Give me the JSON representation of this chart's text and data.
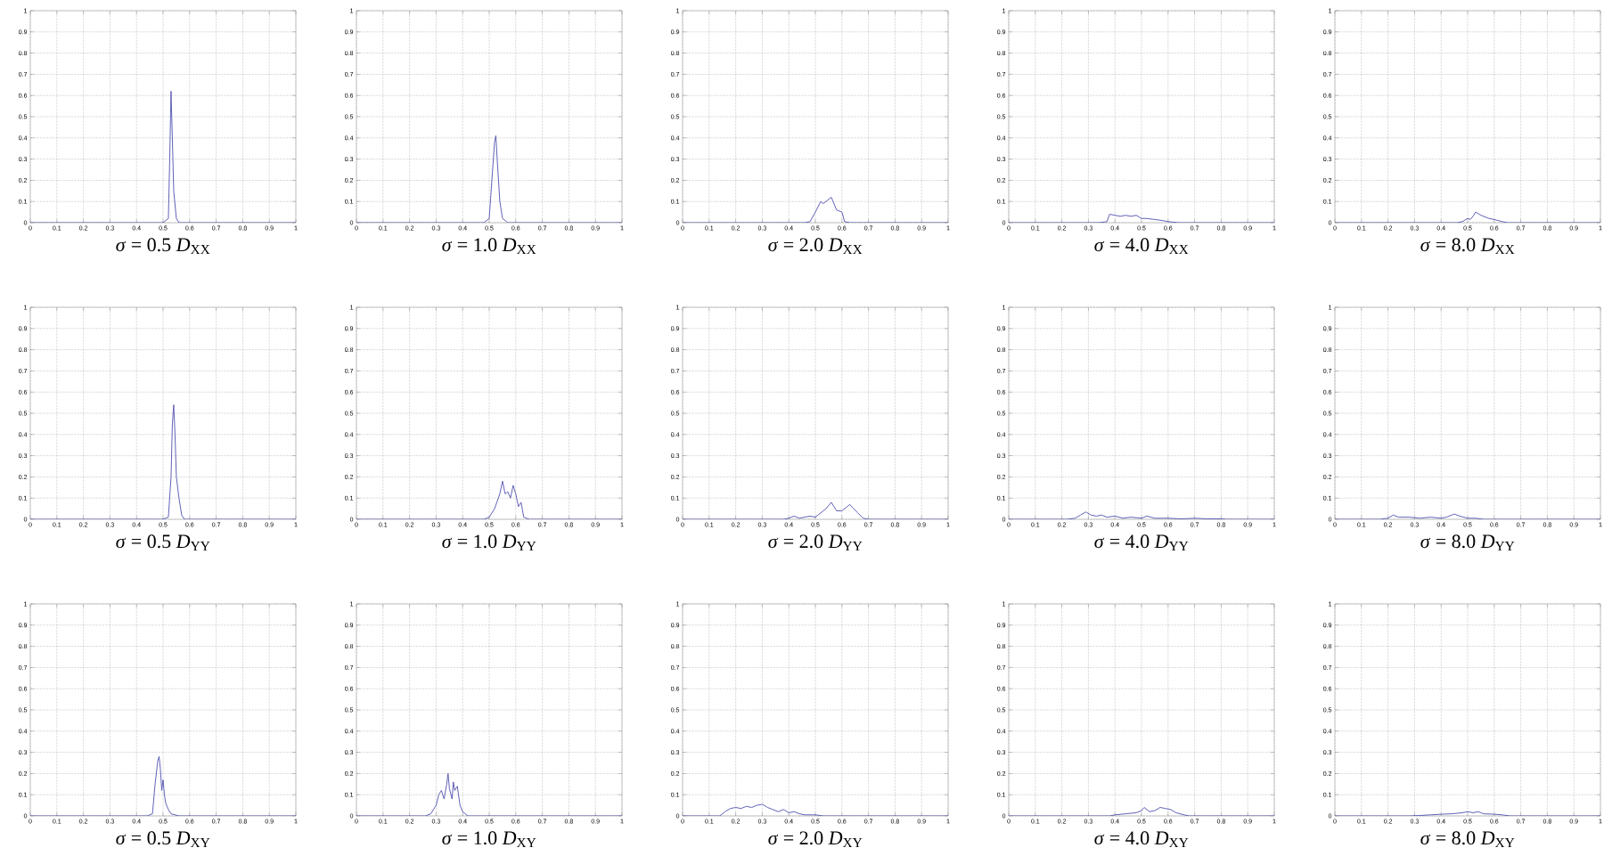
{
  "chart_data": [
    {
      "type": "line",
      "xlabel": "*σ* = 0.5   *D*$_{XX}$",
      "x": [
        0,
        0.5,
        0.52,
        0.525,
        0.53,
        0.535,
        0.54,
        0.55,
        0.56,
        0.6,
        1
      ],
      "values": [
        0,
        0,
        0.02,
        0.3,
        0.62,
        0.4,
        0.15,
        0.02,
        0,
        0,
        0
      ],
      "color": "#5050b0",
      "xlim": [
        0,
        1
      ],
      "ylim": [
        0,
        1
      ],
      "xticks": [
        0,
        0.1,
        0.2,
        0.3,
        0.4,
        0.5,
        0.6,
        0.7,
        0.8,
        0.9,
        1
      ],
      "yticks": [
        0,
        0.1,
        0.2,
        0.3,
        0.4,
        0.5,
        0.6,
        0.7,
        0.8,
        0.9,
        1
      ],
      "grid": true
    },
    {
      "type": "line",
      "xlabel": "*σ* = 1.0   *D*$_{XX}$",
      "x": [
        0,
        0.48,
        0.5,
        0.51,
        0.52,
        0.525,
        0.53,
        0.54,
        0.55,
        0.57,
        1
      ],
      "values": [
        0,
        0,
        0.02,
        0.2,
        0.38,
        0.41,
        0.3,
        0.1,
        0.02,
        0,
        0
      ],
      "color": "#5050b0",
      "xlim": [
        0,
        1
      ],
      "ylim": [
        0,
        1
      ],
      "xticks": [
        0,
        0.1,
        0.2,
        0.3,
        0.4,
        0.5,
        0.6,
        0.7,
        0.8,
        0.9,
        1
      ],
      "yticks": [
        0,
        0.1,
        0.2,
        0.3,
        0.4,
        0.5,
        0.6,
        0.7,
        0.8,
        0.9,
        1
      ],
      "grid": true
    },
    {
      "type": "line",
      "xlabel": "*σ* = 2.0   *D*$_{XX}$",
      "x": [
        0,
        0.46,
        0.48,
        0.5,
        0.52,
        0.53,
        0.55,
        0.56,
        0.57,
        0.58,
        0.6,
        0.61,
        0.63,
        1
      ],
      "values": [
        0,
        0,
        0.005,
        0.05,
        0.1,
        0.09,
        0.11,
        0.12,
        0.09,
        0.06,
        0.05,
        0.005,
        0,
        0
      ],
      "color": "#5050b0",
      "xlim": [
        0,
        1
      ],
      "ylim": [
        0,
        1
      ],
      "xticks": [
        0,
        0.1,
        0.2,
        0.3,
        0.4,
        0.5,
        0.6,
        0.7,
        0.8,
        0.9,
        1
      ],
      "yticks": [
        0,
        0.1,
        0.2,
        0.3,
        0.4,
        0.5,
        0.6,
        0.7,
        0.8,
        0.9,
        1
      ],
      "grid": true
    },
    {
      "type": "line",
      "xlabel": "*σ* = 4.0   *D*$_{XX}$",
      "x": [
        0,
        0.34,
        0.37,
        0.38,
        0.4,
        0.42,
        0.44,
        0.46,
        0.48,
        0.5,
        0.52,
        0.55,
        0.58,
        0.6,
        0.64,
        1
      ],
      "values": [
        0,
        0,
        0.005,
        0.04,
        0.035,
        0.03,
        0.035,
        0.03,
        0.035,
        0.02,
        0.02,
        0.015,
        0.01,
        0.005,
        0,
        0
      ],
      "color": "#5050b0",
      "xlim": [
        0,
        1
      ],
      "ylim": [
        0,
        1
      ],
      "xticks": [
        0,
        0.1,
        0.2,
        0.3,
        0.4,
        0.5,
        0.6,
        0.7,
        0.8,
        0.9,
        1
      ],
      "yticks": [
        0,
        0.1,
        0.2,
        0.3,
        0.4,
        0.5,
        0.6,
        0.7,
        0.8,
        0.9,
        1
      ],
      "grid": true
    },
    {
      "type": "line",
      "xlabel": "*σ* = 8.0   *D*$_{XX}$",
      "x": [
        0,
        0.46,
        0.48,
        0.5,
        0.51,
        0.52,
        0.53,
        0.55,
        0.58,
        0.6,
        0.63,
        0.65,
        1
      ],
      "values": [
        0,
        0,
        0.005,
        0.02,
        0.015,
        0.03,
        0.05,
        0.035,
        0.02,
        0.015,
        0.005,
        0,
        0
      ],
      "color": "#5050b0",
      "xlim": [
        0,
        1
      ],
      "ylim": [
        0,
        1
      ],
      "xticks": [
        0,
        0.1,
        0.2,
        0.3,
        0.4,
        0.5,
        0.6,
        0.7,
        0.8,
        0.9,
        1
      ],
      "yticks": [
        0,
        0.1,
        0.2,
        0.3,
        0.4,
        0.5,
        0.6,
        0.7,
        0.8,
        0.9,
        1
      ],
      "grid": true
    },
    {
      "type": "line",
      "xlabel": "*σ* = 0.5   *D*$_{YY}$",
      "x": [
        0,
        0.5,
        0.52,
        0.53,
        0.535,
        0.54,
        0.545,
        0.55,
        0.56,
        0.57,
        0.58,
        1
      ],
      "values": [
        0,
        0,
        0.01,
        0.2,
        0.45,
        0.54,
        0.4,
        0.2,
        0.1,
        0.02,
        0,
        0
      ],
      "color": "#5050b0",
      "xlim": [
        0,
        1
      ],
      "ylim": [
        0,
        1
      ],
      "xticks": [
        0,
        0.1,
        0.2,
        0.3,
        0.4,
        0.5,
        0.6,
        0.7,
        0.8,
        0.9,
        1
      ],
      "yticks": [
        0,
        0.1,
        0.2,
        0.3,
        0.4,
        0.5,
        0.6,
        0.7,
        0.8,
        0.9,
        1
      ],
      "grid": true
    },
    {
      "type": "line",
      "xlabel": "*σ* = 1.0   *D*$_{YY}$",
      "x": [
        0,
        0.48,
        0.5,
        0.52,
        0.54,
        0.55,
        0.56,
        0.57,
        0.58,
        0.59,
        0.6,
        0.61,
        0.62,
        0.63,
        0.65,
        1
      ],
      "values": [
        0,
        0,
        0.01,
        0.05,
        0.12,
        0.18,
        0.12,
        0.13,
        0.1,
        0.16,
        0.12,
        0.06,
        0.08,
        0.01,
        0,
        0
      ],
      "color": "#5050b0",
      "xlim": [
        0,
        1
      ],
      "ylim": [
        0,
        1
      ],
      "xticks": [
        0,
        0.1,
        0.2,
        0.3,
        0.4,
        0.5,
        0.6,
        0.7,
        0.8,
        0.9,
        1
      ],
      "yticks": [
        0,
        0.1,
        0.2,
        0.3,
        0.4,
        0.5,
        0.6,
        0.7,
        0.8,
        0.9,
        1
      ],
      "grid": true
    },
    {
      "type": "line",
      "xlabel": "*σ* = 2.0   *D*$_{YY}$",
      "x": [
        0,
        0.38,
        0.4,
        0.42,
        0.44,
        0.46,
        0.48,
        0.5,
        0.52,
        0.54,
        0.56,
        0.58,
        0.6,
        0.62,
        0.63,
        0.64,
        0.66,
        0.68,
        0.7,
        1
      ],
      "values": [
        0,
        0,
        0.005,
        0.015,
        0.005,
        0.01,
        0.015,
        0.01,
        0.03,
        0.05,
        0.08,
        0.04,
        0.04,
        0.06,
        0.07,
        0.055,
        0.03,
        0.005,
        0,
        0
      ],
      "color": "#5050b0",
      "xlim": [
        0,
        1
      ],
      "ylim": [
        0,
        1
      ],
      "xticks": [
        0,
        0.1,
        0.2,
        0.3,
        0.4,
        0.5,
        0.6,
        0.7,
        0.8,
        0.9,
        1
      ],
      "yticks": [
        0,
        0.1,
        0.2,
        0.3,
        0.4,
        0.5,
        0.6,
        0.7,
        0.8,
        0.9,
        1
      ],
      "grid": true
    },
    {
      "type": "line",
      "xlabel": "*σ* = 4.0   *D*$_{YY}$",
      "x": [
        0,
        0.22,
        0.25,
        0.27,
        0.29,
        0.31,
        0.33,
        0.35,
        0.37,
        0.4,
        0.43,
        0.46,
        0.5,
        0.52,
        0.55,
        0.6,
        0.65,
        0.7,
        0.75,
        0.8,
        0.82,
        1
      ],
      "values": [
        0,
        0,
        0.005,
        0.02,
        0.035,
        0.02,
        0.015,
        0.02,
        0.01,
        0.015,
        0.005,
        0.01,
        0.005,
        0.015,
        0.005,
        0.005,
        0.002,
        0.005,
        0.002,
        0.002,
        0,
        0
      ],
      "color": "#5050b0",
      "xlim": [
        0,
        1
      ],
      "ylim": [
        0,
        1
      ],
      "xticks": [
        0,
        0.1,
        0.2,
        0.3,
        0.4,
        0.5,
        0.6,
        0.7,
        0.8,
        0.9,
        1
      ],
      "yticks": [
        0,
        0.1,
        0.2,
        0.3,
        0.4,
        0.5,
        0.6,
        0.7,
        0.8,
        0.9,
        1
      ],
      "grid": true
    },
    {
      "type": "line",
      "xlabel": "*σ* = 8.0   *D*$_{YY}$",
      "x": [
        0,
        0.17,
        0.2,
        0.22,
        0.24,
        0.28,
        0.32,
        0.36,
        0.4,
        0.42,
        0.44,
        0.45,
        0.47,
        0.5,
        0.53,
        0.56,
        1
      ],
      "values": [
        0,
        0,
        0.005,
        0.02,
        0.01,
        0.01,
        0.005,
        0.01,
        0.005,
        0.01,
        0.02,
        0.025,
        0.015,
        0.005,
        0.005,
        0,
        0
      ],
      "color": "#5050b0",
      "xlim": [
        0,
        1
      ],
      "ylim": [
        0,
        1
      ],
      "xticks": [
        0,
        0.1,
        0.2,
        0.3,
        0.4,
        0.5,
        0.6,
        0.7,
        0.8,
        0.9,
        1
      ],
      "yticks": [
        0,
        0.1,
        0.2,
        0.3,
        0.4,
        0.5,
        0.6,
        0.7,
        0.8,
        0.9,
        1
      ],
      "grid": true
    },
    {
      "type": "line",
      "xlabel": "*σ* = 0.5   *D*$_{XY}$",
      "x": [
        0,
        0.44,
        0.46,
        0.47,
        0.48,
        0.485,
        0.49,
        0.495,
        0.5,
        0.505,
        0.51,
        0.52,
        0.53,
        0.56,
        0.58,
        1
      ],
      "values": [
        0,
        0,
        0.01,
        0.15,
        0.26,
        0.28,
        0.22,
        0.12,
        0.17,
        0.1,
        0.06,
        0.03,
        0.01,
        0,
        0,
        0
      ],
      "color": "#5050b0",
      "xlim": [
        0,
        1
      ],
      "ylim": [
        0,
        1
      ],
      "xticks": [
        0,
        0.1,
        0.2,
        0.3,
        0.4,
        0.5,
        0.6,
        0.7,
        0.8,
        0.9,
        1
      ],
      "yticks": [
        0,
        0.1,
        0.2,
        0.3,
        0.4,
        0.5,
        0.6,
        0.7,
        0.8,
        0.9,
        1
      ],
      "grid": true
    },
    {
      "type": "line",
      "xlabel": "*σ* = 1.0   *D*$_{XY}$",
      "x": [
        0,
        0.26,
        0.28,
        0.3,
        0.31,
        0.32,
        0.33,
        0.34,
        0.345,
        0.35,
        0.36,
        0.365,
        0.37,
        0.38,
        0.39,
        0.4,
        0.42,
        1
      ],
      "values": [
        0,
        0,
        0.01,
        0.05,
        0.1,
        0.12,
        0.08,
        0.15,
        0.2,
        0.13,
        0.08,
        0.16,
        0.12,
        0.14,
        0.05,
        0.02,
        0,
        0
      ],
      "color": "#5050b0",
      "xlim": [
        0,
        1
      ],
      "ylim": [
        0,
        1
      ],
      "xticks": [
        0,
        0.1,
        0.2,
        0.3,
        0.4,
        0.5,
        0.6,
        0.7,
        0.8,
        0.9,
        1
      ],
      "yticks": [
        0,
        0.1,
        0.2,
        0.3,
        0.4,
        0.5,
        0.6,
        0.7,
        0.8,
        0.9,
        1
      ],
      "grid": true
    },
    {
      "type": "line",
      "xlabel": "*σ* = 2.0   *D*$_{XY}$",
      "x": [
        0,
        0.14,
        0.16,
        0.18,
        0.2,
        0.22,
        0.24,
        0.26,
        0.28,
        0.3,
        0.32,
        0.34,
        0.36,
        0.38,
        0.4,
        0.42,
        0.44,
        0.46,
        0.5,
        0.53,
        1
      ],
      "values": [
        0,
        0,
        0.02,
        0.035,
        0.04,
        0.035,
        0.045,
        0.04,
        0.05,
        0.055,
        0.04,
        0.03,
        0.02,
        0.03,
        0.015,
        0.02,
        0.01,
        0.005,
        0.005,
        0,
        0
      ],
      "color": "#5050b0",
      "xlim": [
        0,
        1
      ],
      "ylim": [
        0,
        1
      ],
      "xticks": [
        0,
        0.1,
        0.2,
        0.3,
        0.4,
        0.5,
        0.6,
        0.7,
        0.8,
        0.9,
        1
      ],
      "yticks": [
        0,
        0.1,
        0.2,
        0.3,
        0.4,
        0.5,
        0.6,
        0.7,
        0.8,
        0.9,
        1
      ],
      "grid": true
    },
    {
      "type": "line",
      "xlabel": "*σ* = 4.0   *D*$_{XY}$",
      "x": [
        0,
        0.38,
        0.4,
        0.44,
        0.48,
        0.5,
        0.51,
        0.53,
        0.55,
        0.57,
        0.59,
        0.61,
        0.63,
        0.66,
        0.68,
        1
      ],
      "values": [
        0,
        0,
        0.005,
        0.01,
        0.015,
        0.025,
        0.04,
        0.02,
        0.025,
        0.04,
        0.035,
        0.03,
        0.015,
        0.005,
        0,
        0
      ],
      "color": "#5050b0",
      "xlim": [
        0,
        1
      ],
      "ylim": [
        0,
        1
      ],
      "xticks": [
        0,
        0.1,
        0.2,
        0.3,
        0.4,
        0.5,
        0.6,
        0.7,
        0.8,
        0.9,
        1
      ],
      "yticks": [
        0,
        0.1,
        0.2,
        0.3,
        0.4,
        0.5,
        0.6,
        0.7,
        0.8,
        0.9,
        1
      ],
      "grid": true
    },
    {
      "type": "line",
      "xlabel": "*σ* = 8.0   *D*$_{XY}$",
      "x": [
        0,
        0.28,
        0.32,
        0.36,
        0.4,
        0.44,
        0.48,
        0.5,
        0.52,
        0.54,
        0.56,
        0.6,
        0.63,
        0.66,
        1
      ],
      "values": [
        0,
        0,
        0.002,
        0.005,
        0.008,
        0.01,
        0.015,
        0.02,
        0.015,
        0.02,
        0.01,
        0.008,
        0.005,
        0,
        0
      ],
      "color": "#5050b0",
      "xlim": [
        0,
        1
      ],
      "ylim": [
        0,
        1
      ],
      "xticks": [
        0,
        0.1,
        0.2,
        0.3,
        0.4,
        0.5,
        0.6,
        0.7,
        0.8,
        0.9,
        1
      ],
      "yticks": [
        0,
        0.1,
        0.2,
        0.3,
        0.4,
        0.5,
        0.6,
        0.7,
        0.8,
        0.9,
        1
      ],
      "grid": true
    }
  ]
}
